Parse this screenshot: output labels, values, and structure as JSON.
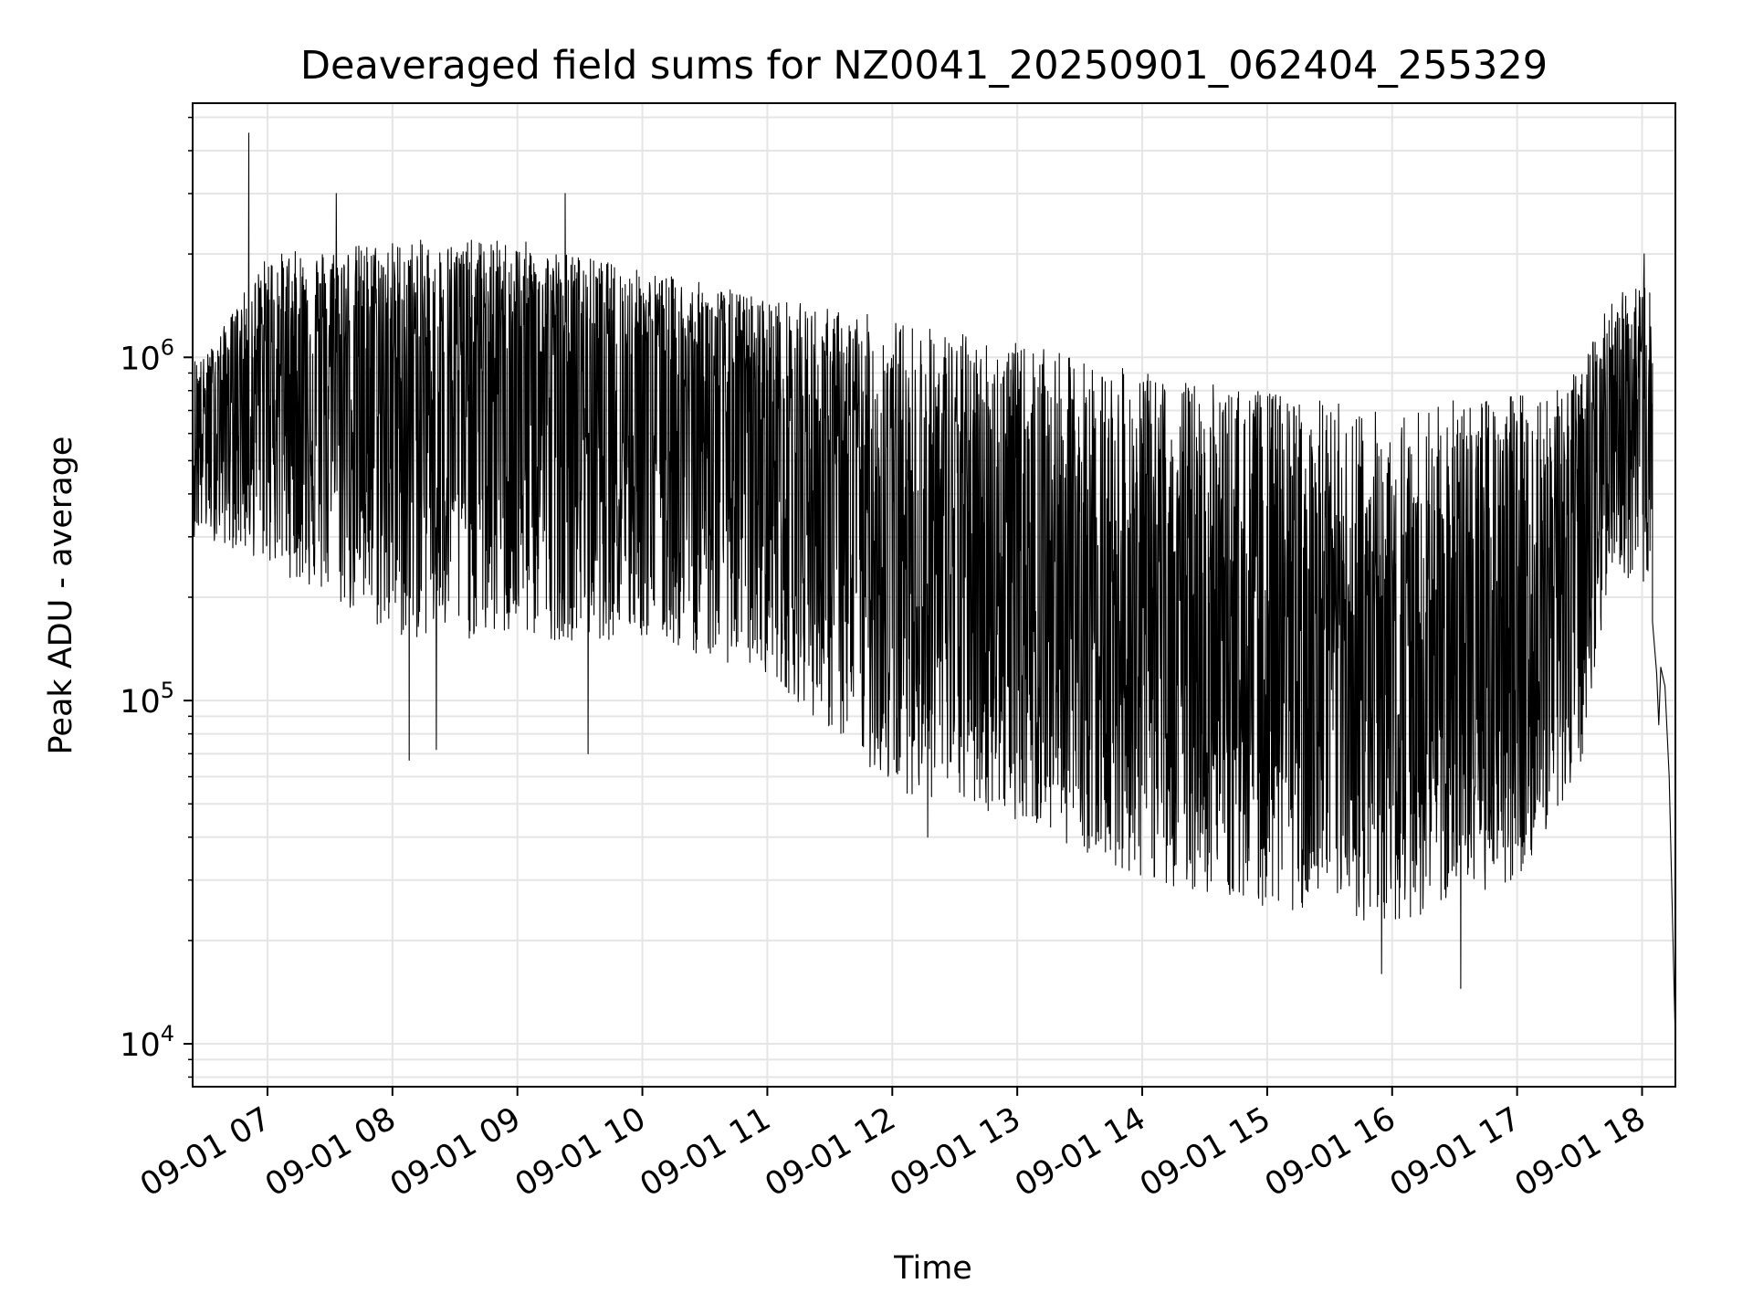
{
  "chart_data": {
    "type": "line",
    "title": "Deaveraged field sums for NZ0041_20250901_062404_255329",
    "xlabel": "Time",
    "ylabel": "Peak ADU - average",
    "y_scale": "log",
    "ylim": [
      7500,
      5500000
    ],
    "xlim": [
      "2025-09-01 06:24:04",
      "2025-09-01 18:16:00"
    ],
    "grid": true,
    "line_color": "#000000",
    "grid_color": "#e5e5e5",
    "x_ticks": [
      {
        "label": "09-01 07",
        "time": "2025-09-01 07:00"
      },
      {
        "label": "09-01 08",
        "time": "2025-09-01 08:00"
      },
      {
        "label": "09-01 09",
        "time": "2025-09-01 09:00"
      },
      {
        "label": "09-01 10",
        "time": "2025-09-01 10:00"
      },
      {
        "label": "09-01 11",
        "time": "2025-09-01 11:00"
      },
      {
        "label": "09-01 12",
        "time": "2025-09-01 12:00"
      },
      {
        "label": "09-01 13",
        "time": "2025-09-01 13:00"
      },
      {
        "label": "09-01 14",
        "time": "2025-09-01 14:00"
      },
      {
        "label": "09-01 15",
        "time": "2025-09-01 15:00"
      },
      {
        "label": "09-01 16",
        "time": "2025-09-01 16:00"
      },
      {
        "label": "09-01 17",
        "time": "2025-09-01 17:00"
      },
      {
        "label": "09-01 18",
        "time": "2025-09-01 18:00"
      }
    ],
    "y_ticks": [
      {
        "base": "10",
        "exp": "4",
        "value": 10000
      },
      {
        "base": "10",
        "exp": "5",
        "value": 100000
      },
      {
        "base": "10",
        "exp": "6",
        "value": 1000000
      }
    ],
    "series": [
      {
        "envelope": [
          {
            "time": "2025-09-01 06:30",
            "low": 300000,
            "high": 1000000,
            "typical": 700000
          },
          {
            "time": "2025-09-01 07:00",
            "low": 250000,
            "high": 2000000,
            "typical": 1000000
          },
          {
            "time": "2025-09-01 08:00",
            "low": 150000,
            "high": 2200000,
            "typical": 900000
          },
          {
            "time": "2025-09-01 09:00",
            "low": 150000,
            "high": 2200000,
            "typical": 900000
          },
          {
            "time": "2025-09-01 10:00",
            "low": 150000,
            "high": 1800000,
            "typical": 800000
          },
          {
            "time": "2025-09-01 11:00",
            "low": 120000,
            "high": 1500000,
            "typical": 600000
          },
          {
            "time": "2025-09-01 12:00",
            "low": 55000,
            "high": 1300000,
            "typical": 300000
          },
          {
            "time": "2025-09-01 13:00",
            "low": 45000,
            "high": 1100000,
            "typical": 250000
          },
          {
            "time": "2025-09-01 14:00",
            "low": 30000,
            "high": 900000,
            "typical": 150000
          },
          {
            "time": "2025-09-01 15:00",
            "low": 25000,
            "high": 800000,
            "typical": 130000
          },
          {
            "time": "2025-09-01 16:00",
            "low": 22000,
            "high": 700000,
            "typical": 110000
          },
          {
            "time": "2025-09-01 17:00",
            "low": 30000,
            "high": 800000,
            "typical": 150000
          },
          {
            "time": "2025-09-01 17:30",
            "low": 60000,
            "high": 900000,
            "typical": 250000
          },
          {
            "time": "2025-09-01 17:45",
            "low": 250000,
            "high": 1500000,
            "typical": 700000
          },
          {
            "time": "2025-09-01 18:05",
            "low": 200000,
            "high": 1700000,
            "typical": 700000
          }
        ],
        "spikes": [
          {
            "time": "2025-09-01 06:51",
            "value": 4500000
          },
          {
            "time": "2025-09-01 07:33",
            "value": 3000000
          },
          {
            "time": "2025-09-01 09:23",
            "value": 3000000
          },
          {
            "time": "2025-09-01 08:08",
            "value": 67000
          },
          {
            "time": "2025-09-01 08:21",
            "value": 72000
          },
          {
            "time": "2025-09-01 09:34",
            "value": 70000
          },
          {
            "time": "2025-09-01 12:17",
            "value": 40000
          },
          {
            "time": "2025-09-01 15:55",
            "value": 16000
          },
          {
            "time": "2025-09-01 16:33",
            "value": 14500
          },
          {
            "time": "2025-09-01 18:01",
            "value": 2000000
          }
        ],
        "tail": [
          {
            "time": "2025-09-01 18:05",
            "value": 170000
          },
          {
            "time": "2025-09-01 18:07",
            "value": 120000
          },
          {
            "time": "2025-09-01 18:08",
            "value": 85000
          },
          {
            "time": "2025-09-01 18:09",
            "value": 125000
          },
          {
            "time": "2025-09-01 18:11",
            "value": 110000
          },
          {
            "time": "2025-09-01 18:13",
            "value": 60000
          },
          {
            "time": "2025-09-01 18:16",
            "value": 10000
          }
        ]
      }
    ]
  }
}
